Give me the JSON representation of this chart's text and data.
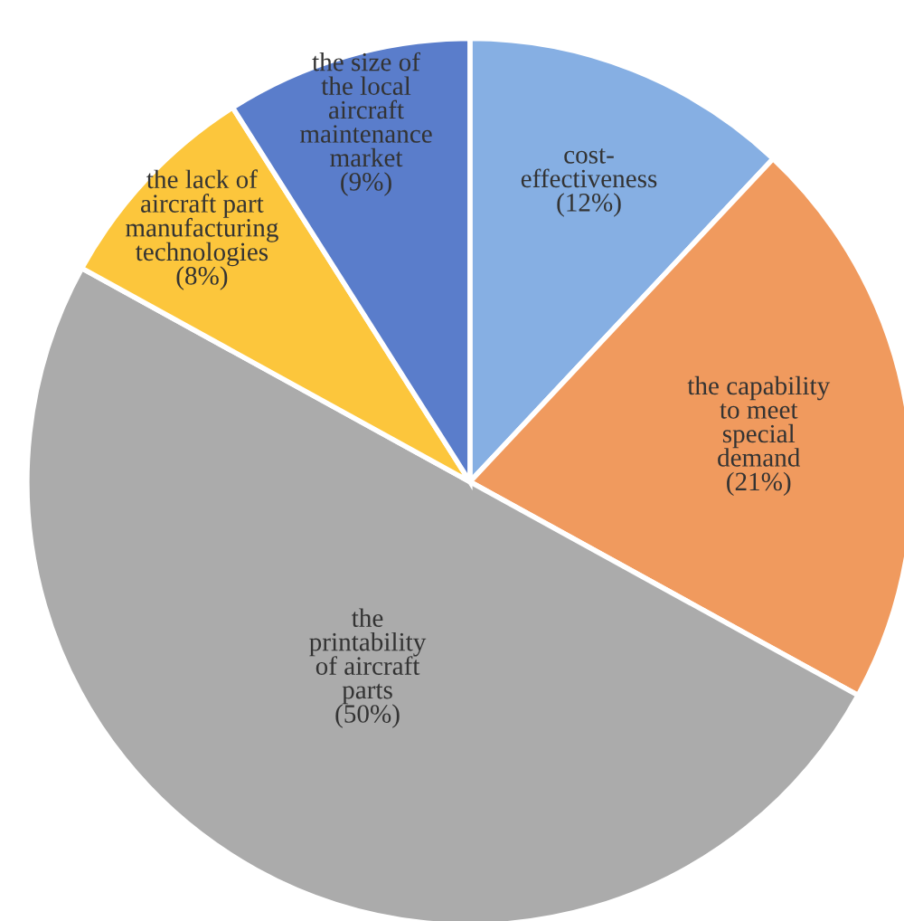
{
  "chart_data": {
    "type": "pie",
    "categories": [
      "cost-\neffectiveness",
      "the capability\nto meet\nspecial\ndemand",
      "the\nprintability\nof aircraft\nparts",
      "the lack of\naircraft part\nmanufacturing\ntechnologies",
      "the size of\nthe local\naircraft\nmaintenance\nmarket"
    ],
    "values": [
      12,
      21,
      50,
      8,
      9
    ],
    "value_labels": [
      "(12%)",
      "(21%)",
      "(50%)",
      "(8%)",
      "(9%)"
    ],
    "colors": [
      "#86afe3",
      "#f09a5e",
      "#ababab",
      "#fcc63c",
      "#5a7dcb"
    ],
    "legend": false
  }
}
